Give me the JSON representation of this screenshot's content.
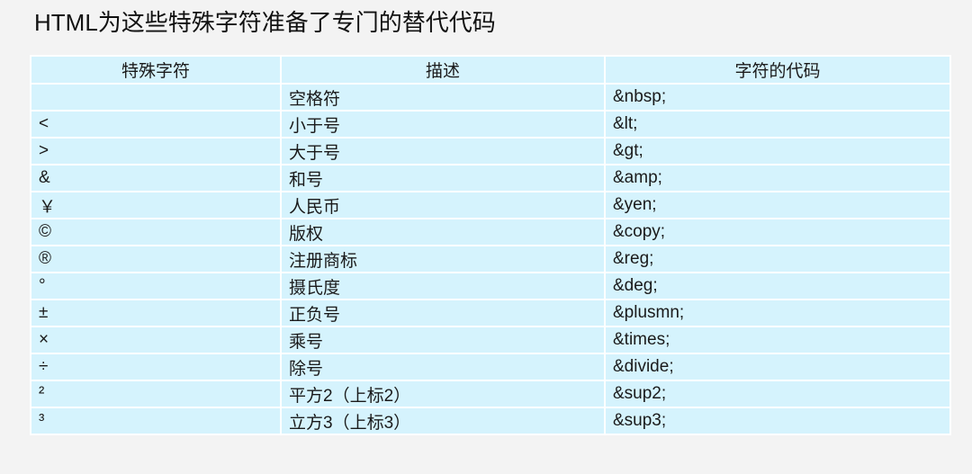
{
  "title": "HTML为这些特殊字符准备了专门的替代代码",
  "table": {
    "headers": [
      "特殊字符",
      "描述",
      "字符的代码"
    ],
    "rows": [
      [
        "",
        "空格符",
        "&nbsp;"
      ],
      [
        "<",
        "小于号",
        "&lt;"
      ],
      [
        ">",
        "大于号",
        "&gt;"
      ],
      [
        "&",
        "和号",
        "&amp;"
      ],
      [
        "￥",
        "人民币",
        "&yen;"
      ],
      [
        "©",
        "版权",
        "&copy;"
      ],
      [
        "®",
        "注册商标",
        "&reg;"
      ],
      [
        "°",
        "摄氏度",
        "&deg;"
      ],
      [
        "±",
        "正负号",
        "&plusmn;"
      ],
      [
        "×",
        "乘号",
        "&times;"
      ],
      [
        "÷",
        "除号",
        "&divide;"
      ],
      [
        "²",
        "平方2（上标2）",
        "&sup2;"
      ],
      [
        "³",
        "立方3（上标3）",
        "&sup3;"
      ]
    ]
  },
  "colors": {
    "cell_background": "#d5f3fd",
    "page_background": "#f3f3f3"
  }
}
